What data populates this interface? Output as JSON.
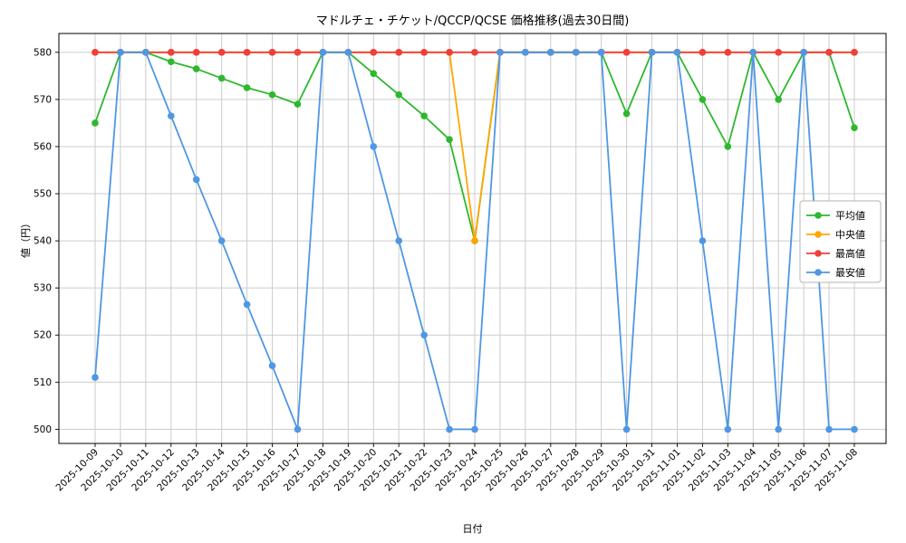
{
  "chart_data": {
    "type": "line",
    "title": "マドルチェ・チケット/QCCP/QCSE 価格推移(過去30日間)",
    "xlabel": "日付",
    "ylabel": "値（円）",
    "categories": [
      "2025-10-09",
      "2025-10-10",
      "2025-10-11",
      "2025-10-12",
      "2025-10-13",
      "2025-10-14",
      "2025-10-15",
      "2025-10-16",
      "2025-10-17",
      "2025-10-18",
      "2025-10-19",
      "2025-10-20",
      "2025-10-21",
      "2025-10-22",
      "2025-10-23",
      "2025-10-24",
      "2025-10-25",
      "2025-10-26",
      "2025-10-27",
      "2025-10-28",
      "2025-10-29",
      "2025-10-30",
      "2025-10-31",
      "2025-11-01",
      "2025-11-02",
      "2025-11-03",
      "2025-11-04",
      "2025-11-05",
      "2025-11-06",
      "2025-11-07",
      "2025-11-08"
    ],
    "series": [
      {
        "key": "average",
        "name": "平均値",
        "color": "#2eb82e",
        "values": [
          565,
          580,
          580,
          578,
          576.5,
          574.5,
          572.5,
          571,
          569,
          580,
          580,
          575.5,
          571,
          566.5,
          561.5,
          540,
          580,
          580,
          580,
          580,
          580,
          567,
          580,
          580,
          570,
          560,
          580,
          570,
          580,
          580,
          564
        ]
      },
      {
        "key": "median",
        "name": "中央値",
        "color": "#ffa500",
        "values": [
          580,
          580,
          580,
          580,
          580,
          580,
          580,
          580,
          580,
          580,
          580,
          580,
          580,
          580,
          580,
          540,
          580,
          580,
          580,
          580,
          580,
          580,
          580,
          580,
          580,
          580,
          580,
          580,
          580,
          580,
          580
        ]
      },
      {
        "key": "max",
        "name": "最高値",
        "color": "#f03e3e",
        "values": [
          580,
          580,
          580,
          580,
          580,
          580,
          580,
          580,
          580,
          580,
          580,
          580,
          580,
          580,
          580,
          580,
          580,
          580,
          580,
          580,
          580,
          580,
          580,
          580,
          580,
          580,
          580,
          580,
          580,
          580,
          580
        ]
      },
      {
        "key": "min",
        "name": "最安値",
        "color": "#4f97e3",
        "values": [
          511,
          580,
          580,
          566.5,
          553,
          540,
          526.5,
          513.5,
          500,
          580,
          580,
          560,
          540,
          520,
          500,
          500,
          580,
          580,
          580,
          580,
          580,
          500,
          580,
          580,
          540,
          500,
          580,
          500,
          580,
          500,
          500
        ]
      }
    ],
    "ylim": [
      497,
      584
    ],
    "yticks": [
      500,
      510,
      520,
      530,
      540,
      550,
      560,
      570,
      580
    ],
    "grid": true,
    "legend_position": "right"
  },
  "colors": {
    "background": "#ffffff",
    "grid": "#cccccc",
    "axis": "#000000",
    "tick_label": "#000000",
    "legend_border": "#b3b3b3",
    "legend_background": "#ffffff"
  }
}
